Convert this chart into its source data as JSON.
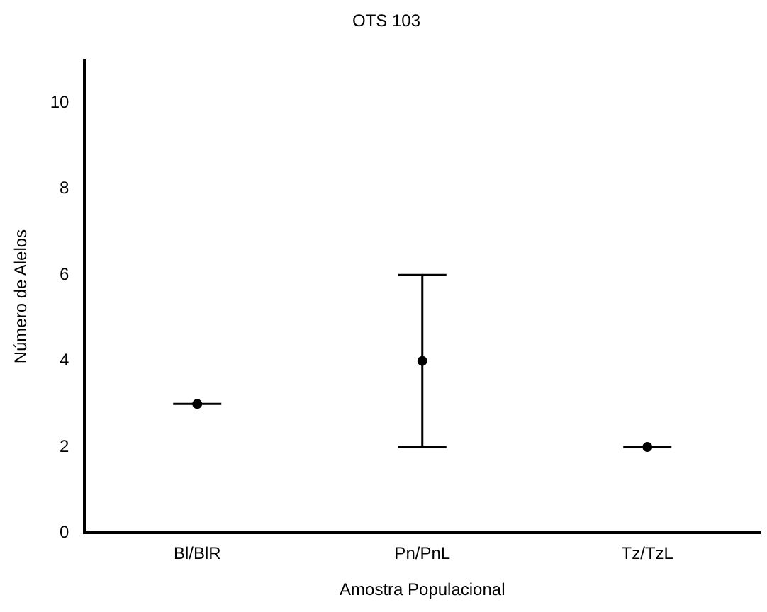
{
  "chart_data": {
    "type": "scatter",
    "title": "OTS 103",
    "xlabel": "Amostra Populacional",
    "ylabel": "Número de Alelos",
    "categories": [
      "Bl/BlR",
      "Pn/PnL",
      "Tz/TzL"
    ],
    "values": [
      3,
      4,
      2
    ],
    "errors": [
      [
        3,
        3
      ],
      [
        2,
        6
      ],
      [
        2,
        2
      ]
    ],
    "color": "#000000",
    "marker": "circle",
    "ylim": [
      0,
      11
    ],
    "yticks": [
      0,
      2,
      4,
      6,
      8,
      10
    ],
    "grid": false,
    "legend": false
  }
}
